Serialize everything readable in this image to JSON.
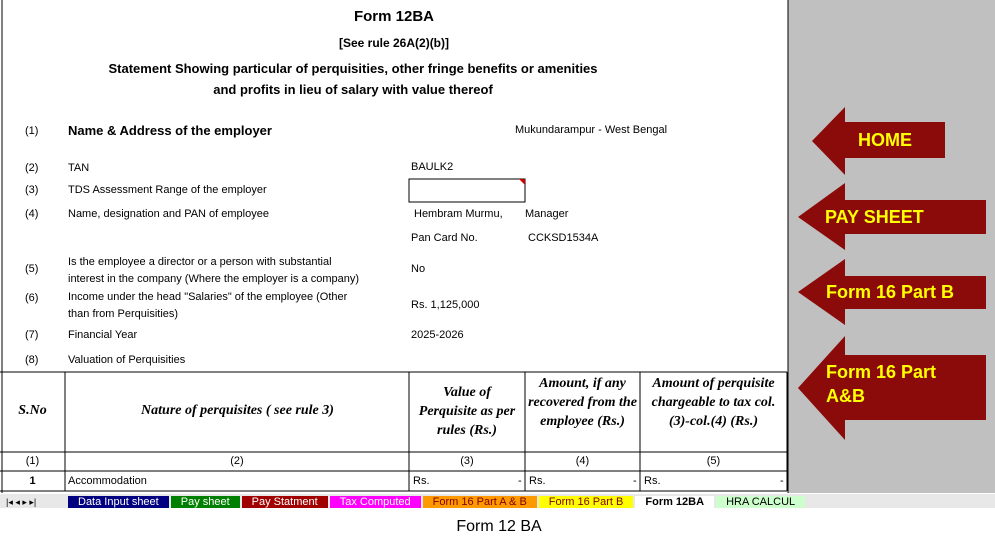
{
  "form": {
    "title": "Form 12BA",
    "rule": "[See rule 26A(2)(b)]",
    "statement": [
      "Statement Showing particular of perquisities, other fringe benefits or amenities",
      "and profits in lieu of salary with value thereof"
    ],
    "items": [
      {
        "no": "(1)",
        "label": "Name & Address of the employer",
        "value": "Mukundarampur - West Bengal"
      },
      {
        "no": "(2)",
        "label": "TAN",
        "value": "BAULK2"
      },
      {
        "no": "(3)",
        "label": "TDS Assessment Range of the employer"
      },
      {
        "no": "(4)",
        "label": "Name, designation and PAN of employee",
        "value": "Hembram Murmu,",
        "designation": "Manager",
        "pan_label": "Pan Card No.",
        "pan": "CCKSD1534A"
      },
      {
        "no": "(5)",
        "label": [
          "Is the employee a director or a person with substantial",
          "interest in the company (Where the employer is a company)"
        ],
        "value": "No"
      },
      {
        "no": "(6)",
        "label": [
          "Income under the head \"Salaries\" of the employee (Other",
          "than from Perquisities)"
        ],
        "value": "Rs. 1,125,000"
      },
      {
        "no": "(7)",
        "label": "Financial Year",
        "value": "2025-2026"
      },
      {
        "no": "(8)",
        "label": "Valuation of Perquisities"
      }
    ]
  },
  "table": {
    "headers": [
      "S.No",
      "Nature of perquisites ( see rule 3)",
      "Value of Perquisite as per rules (Rs.)",
      "Amount, if any recovered from the employee (Rs.)",
      "Amount of perquisite chargeable to tax col.(3)-col.(4) (Rs.)"
    ],
    "numbers": [
      "(1)",
      "(2)",
      "(3)",
      "(4)",
      "(5)"
    ],
    "rows": [
      {
        "sno": "1",
        "nature": "Accommodation",
        "cells": [
          {
            "currency": "Rs.",
            "value": "-"
          },
          {
            "currency": "Rs.",
            "value": "-"
          },
          {
            "currency": "Rs.",
            "value": "-"
          }
        ]
      }
    ]
  },
  "buttons": [
    "HOME",
    "PAY SHEET",
    "Form 16 Part B",
    "Form 16 Part A&B"
  ],
  "tabs": [
    "Data Input sheet",
    "Pay sheet",
    "Pay Statment",
    "Tax Computed",
    "Form 16 Part A & B",
    "Form 16 Part B",
    "Form 12BA",
    "HRA CALCUL"
  ],
  "caption": "Form 12 BA"
}
